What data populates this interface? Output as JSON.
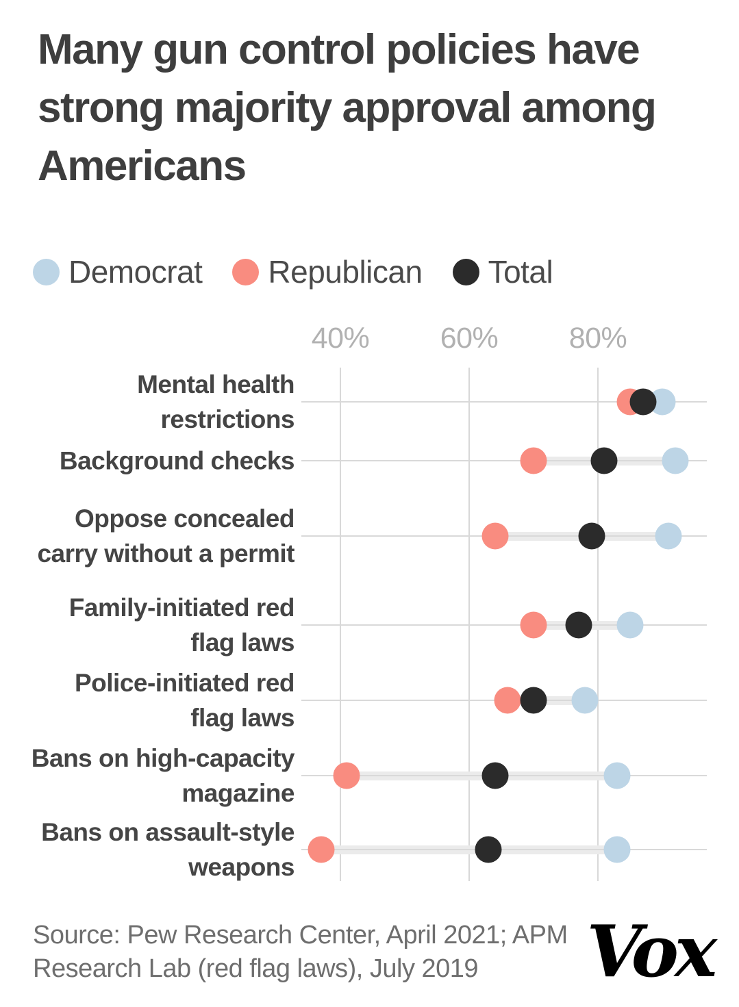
{
  "title": "Many gun control policies have strong majority approval among Americans",
  "legend": [
    {
      "label": "Democrat",
      "color": "#bdd5e6"
    },
    {
      "label": "Republican",
      "color": "#f98c80"
    },
    {
      "label": "Total",
      "color": "#2b2b2b"
    }
  ],
  "source": "Source: Pew Research Center, April 2021; APM Research Lab (red flag laws), July 2019",
  "logo_text": "Vox",
  "chart_data": {
    "type": "scatter",
    "subtype": "dumbbell-dot-plot",
    "unit": "percent approval",
    "title": "Many gun control policies have strong majority approval among Americans",
    "xlabel": "",
    "ylabel": "",
    "xlim": [
      33,
      97
    ],
    "grid": "vertical-and-row-lines",
    "legend_position": "top",
    "x_axis": {
      "ticks": [
        40,
        60,
        80
      ],
      "tick_labels": [
        "40%",
        "60%",
        "80%"
      ]
    },
    "categories": [
      "Mental health restrictions",
      "Background checks",
      "Oppose concealed carry without a permit",
      "Family-initiated red flag laws",
      "Police-initiated red flag laws",
      "Bans on high-capacity magazine",
      "Bans on assault-style weapons"
    ],
    "series": [
      {
        "name": "Democrat",
        "color": "#bdd5e6",
        "values": [
          90,
          92,
          91,
          85,
          78,
          83,
          83
        ]
      },
      {
        "name": "Republican",
        "color": "#f98c80",
        "values": [
          85,
          70,
          64,
          70,
          66,
          41,
          37
        ]
      },
      {
        "name": "Total",
        "color": "#2b2b2b",
        "values": [
          87,
          81,
          79,
          77,
          70,
          64,
          63
        ]
      }
    ]
  }
}
